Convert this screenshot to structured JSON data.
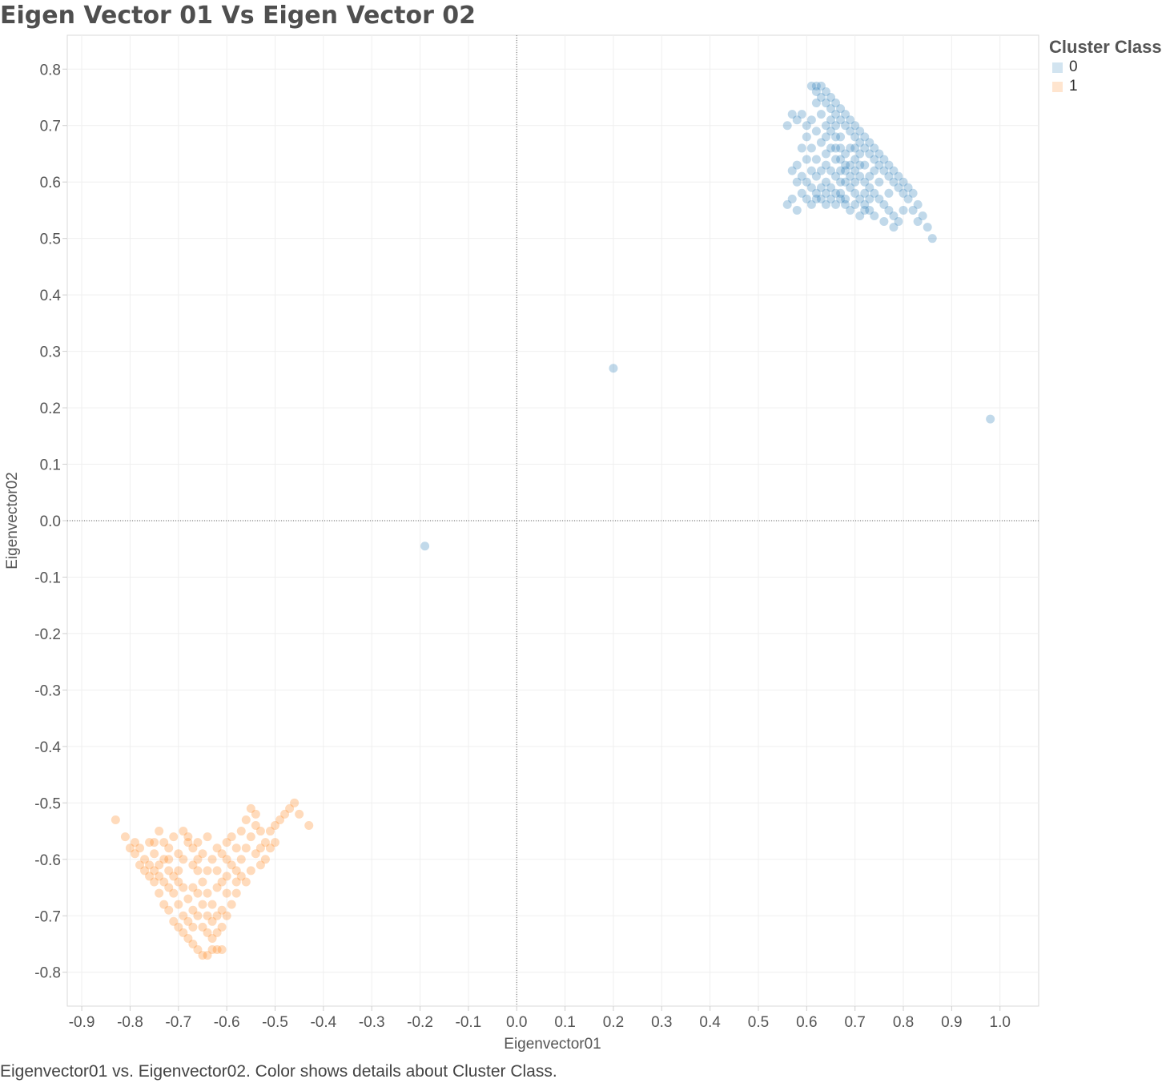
{
  "chart_data": {
    "type": "scatter",
    "title": "Eigen Vector 01 Vs Eigen Vector 02",
    "xlabel": "Eigenvector01",
    "ylabel": "Eigenvector02",
    "caption": "Eigenvector01 vs. Eigenvector02.  Color shows details about Cluster Class.",
    "xlim": [
      -0.93,
      1.08
    ],
    "ylim": [
      -0.86,
      0.86
    ],
    "x_ticks": [
      "-0.9",
      "-0.8",
      "-0.7",
      "-0.6",
      "-0.5",
      "-0.4",
      "-0.3",
      "-0.2",
      "-0.1",
      "0.0",
      "0.1",
      "0.2",
      "0.3",
      "0.4",
      "0.5",
      "0.6",
      "0.7",
      "0.8",
      "0.9",
      "1.0"
    ],
    "y_ticks": [
      "0.8",
      "0.7",
      "0.6",
      "0.5",
      "0.4",
      "0.3",
      "0.2",
      "0.1",
      "0.0",
      "-0.1",
      "-0.2",
      "-0.3",
      "-0.4",
      "-0.5",
      "-0.6",
      "-0.7",
      "-0.8"
    ],
    "grid": true,
    "zero_lines": true,
    "legend": {
      "title": "Cluster Class",
      "placement": "top-right",
      "entries": [
        {
          "label": "0",
          "color": "#1f77b4"
        },
        {
          "label": "1",
          "color": "#ff7f0e"
        }
      ]
    },
    "series": [
      {
        "name": "0",
        "color": "#1f77b4",
        "points": [
          [
            0.63,
            0.77
          ],
          [
            0.64,
            0.76
          ],
          [
            0.65,
            0.75
          ],
          [
            0.66,
            0.74
          ],
          [
            0.67,
            0.73
          ],
          [
            0.68,
            0.72
          ],
          [
            0.69,
            0.71
          ],
          [
            0.7,
            0.7
          ],
          [
            0.71,
            0.69
          ],
          [
            0.72,
            0.68
          ],
          [
            0.73,
            0.67
          ],
          [
            0.74,
            0.66
          ],
          [
            0.75,
            0.65
          ],
          [
            0.76,
            0.64
          ],
          [
            0.77,
            0.63
          ],
          [
            0.78,
            0.62
          ],
          [
            0.79,
            0.61
          ],
          [
            0.8,
            0.6
          ],
          [
            0.81,
            0.59
          ],
          [
            0.82,
            0.58
          ],
          [
            0.83,
            0.56
          ],
          [
            0.84,
            0.54
          ],
          [
            0.85,
            0.52
          ],
          [
            0.86,
            0.5
          ],
          [
            0.62,
            0.76
          ],
          [
            0.63,
            0.75
          ],
          [
            0.64,
            0.74
          ],
          [
            0.65,
            0.73
          ],
          [
            0.66,
            0.72
          ],
          [
            0.67,
            0.71
          ],
          [
            0.68,
            0.7
          ],
          [
            0.69,
            0.69
          ],
          [
            0.7,
            0.68
          ],
          [
            0.71,
            0.67
          ],
          [
            0.72,
            0.66
          ],
          [
            0.73,
            0.65
          ],
          [
            0.74,
            0.64
          ],
          [
            0.75,
            0.63
          ],
          [
            0.76,
            0.62
          ],
          [
            0.77,
            0.61
          ],
          [
            0.78,
            0.6
          ],
          [
            0.79,
            0.59
          ],
          [
            0.8,
            0.58
          ],
          [
            0.81,
            0.57
          ],
          [
            0.82,
            0.55
          ],
          [
            0.83,
            0.53
          ],
          [
            0.62,
            0.74
          ],
          [
            0.63,
            0.72
          ],
          [
            0.64,
            0.7
          ],
          [
            0.65,
            0.69
          ],
          [
            0.66,
            0.68
          ],
          [
            0.67,
            0.66
          ],
          [
            0.68,
            0.65
          ],
          [
            0.69,
            0.63
          ],
          [
            0.7,
            0.62
          ],
          [
            0.71,
            0.61
          ],
          [
            0.72,
            0.6
          ],
          [
            0.73,
            0.59
          ],
          [
            0.74,
            0.58
          ],
          [
            0.75,
            0.57
          ],
          [
            0.76,
            0.56
          ],
          [
            0.77,
            0.55
          ],
          [
            0.78,
            0.54
          ],
          [
            0.79,
            0.53
          ],
          [
            0.8,
            0.55
          ],
          [
            0.61,
            0.71
          ],
          [
            0.62,
            0.69
          ],
          [
            0.63,
            0.67
          ],
          [
            0.64,
            0.65
          ],
          [
            0.65,
            0.66
          ],
          [
            0.66,
            0.64
          ],
          [
            0.67,
            0.62
          ],
          [
            0.68,
            0.6
          ],
          [
            0.69,
            0.59
          ],
          [
            0.7,
            0.58
          ],
          [
            0.71,
            0.57
          ],
          [
            0.72,
            0.56
          ],
          [
            0.73,
            0.55
          ],
          [
            0.74,
            0.54
          ],
          [
            0.76,
            0.53
          ],
          [
            0.78,
            0.52
          ],
          [
            0.6,
            0.68
          ],
          [
            0.61,
            0.66
          ],
          [
            0.62,
            0.64
          ],
          [
            0.63,
            0.62
          ],
          [
            0.64,
            0.6
          ],
          [
            0.65,
            0.59
          ],
          [
            0.66,
            0.58
          ],
          [
            0.67,
            0.57
          ],
          [
            0.68,
            0.56
          ],
          [
            0.69,
            0.55
          ],
          [
            0.7,
            0.56
          ],
          [
            0.71,
            0.54
          ],
          [
            0.72,
            0.55
          ],
          [
            0.59,
            0.66
          ],
          [
            0.6,
            0.64
          ],
          [
            0.61,
            0.62
          ],
          [
            0.62,
            0.61
          ],
          [
            0.63,
            0.59
          ],
          [
            0.64,
            0.58
          ],
          [
            0.65,
            0.57
          ],
          [
            0.66,
            0.56
          ],
          [
            0.67,
            0.58
          ],
          [
            0.68,
            0.57
          ],
          [
            0.58,
            0.63
          ],
          [
            0.59,
            0.61
          ],
          [
            0.6,
            0.6
          ],
          [
            0.61,
            0.59
          ],
          [
            0.62,
            0.58
          ],
          [
            0.63,
            0.57
          ],
          [
            0.64,
            0.56
          ],
          [
            0.57,
            0.62
          ],
          [
            0.58,
            0.6
          ],
          [
            0.59,
            0.58
          ],
          [
            0.6,
            0.57
          ],
          [
            0.61,
            0.56
          ],
          [
            0.62,
            0.57
          ],
          [
            0.56,
            0.56
          ],
          [
            0.57,
            0.57
          ],
          [
            0.58,
            0.55
          ],
          [
            0.56,
            0.7
          ],
          [
            0.57,
            0.72
          ],
          [
            0.58,
            0.71
          ],
          [
            0.59,
            0.72
          ],
          [
            0.6,
            0.7
          ],
          [
            0.61,
            0.77
          ],
          [
            0.62,
            0.77
          ],
          [
            0.66,
            0.7
          ],
          [
            0.67,
            0.68
          ],
          [
            0.7,
            0.64
          ],
          [
            0.71,
            0.63
          ],
          [
            0.73,
            0.61
          ],
          [
            0.75,
            0.6
          ],
          [
            0.74,
            0.62
          ],
          [
            0.77,
            0.58
          ],
          [
            0.64,
            0.68
          ],
          [
            0.65,
            0.71
          ],
          [
            0.66,
            0.66
          ],
          [
            0.67,
            0.64
          ],
          [
            0.68,
            0.63
          ],
          [
            0.69,
            0.61
          ],
          [
            0.7,
            0.6
          ],
          [
            0.72,
            0.58
          ],
          [
            0.73,
            0.57
          ],
          [
            0.64,
            0.63
          ],
          [
            0.65,
            0.62
          ],
          [
            0.66,
            0.61
          ],
          [
            0.67,
            0.6
          ],
          [
            0.68,
            0.62
          ],
          [
            0.69,
            0.66
          ],
          [
            0.7,
            0.66
          ],
          [
            0.71,
            0.65
          ],
          [
            0.72,
            0.63
          ],
          [
            0.2,
            0.27
          ],
          [
            0.98,
            0.18
          ],
          [
            -0.19,
            -0.045
          ]
        ]
      },
      {
        "name": "1",
        "color": "#ff7f0e",
        "points": [
          [
            -0.83,
            -0.53
          ],
          [
            -0.81,
            -0.56
          ],
          [
            -0.8,
            -0.58
          ],
          [
            -0.79,
            -0.59
          ],
          [
            -0.78,
            -0.61
          ],
          [
            -0.77,
            -0.62
          ],
          [
            -0.76,
            -0.63
          ],
          [
            -0.75,
            -0.64
          ],
          [
            -0.74,
            -0.66
          ],
          [
            -0.73,
            -0.68
          ],
          [
            -0.72,
            -0.69
          ],
          [
            -0.71,
            -0.71
          ],
          [
            -0.7,
            -0.72
          ],
          [
            -0.69,
            -0.73
          ],
          [
            -0.68,
            -0.74
          ],
          [
            -0.67,
            -0.75
          ],
          [
            -0.66,
            -0.76
          ],
          [
            -0.65,
            -0.77
          ],
          [
            -0.64,
            -0.77
          ],
          [
            -0.63,
            -0.76
          ],
          [
            -0.62,
            -0.76
          ],
          [
            -0.61,
            -0.76
          ],
          [
            -0.78,
            -0.58
          ],
          [
            -0.77,
            -0.6
          ],
          [
            -0.76,
            -0.61
          ],
          [
            -0.75,
            -0.62
          ],
          [
            -0.74,
            -0.63
          ],
          [
            -0.73,
            -0.64
          ],
          [
            -0.72,
            -0.65
          ],
          [
            -0.71,
            -0.66
          ],
          [
            -0.7,
            -0.68
          ],
          [
            -0.69,
            -0.7
          ],
          [
            -0.68,
            -0.71
          ],
          [
            -0.67,
            -0.72
          ],
          [
            -0.76,
            -0.57
          ],
          [
            -0.75,
            -0.59
          ],
          [
            -0.74,
            -0.61
          ],
          [
            -0.73,
            -0.6
          ],
          [
            -0.72,
            -0.62
          ],
          [
            -0.71,
            -0.63
          ],
          [
            -0.7,
            -0.64
          ],
          [
            -0.69,
            -0.65
          ],
          [
            -0.68,
            -0.67
          ],
          [
            -0.67,
            -0.69
          ],
          [
            -0.66,
            -0.7
          ],
          [
            -0.65,
            -0.72
          ],
          [
            -0.64,
            -0.73
          ],
          [
            -0.63,
            -0.74
          ],
          [
            -0.74,
            -0.55
          ],
          [
            -0.73,
            -0.57
          ],
          [
            -0.72,
            -0.58
          ],
          [
            -0.71,
            -0.56
          ],
          [
            -0.7,
            -0.59
          ],
          [
            -0.69,
            -0.6
          ],
          [
            -0.68,
            -0.57
          ],
          [
            -0.67,
            -0.61
          ],
          [
            -0.66,
            -0.62
          ],
          [
            -0.65,
            -0.64
          ],
          [
            -0.64,
            -0.66
          ],
          [
            -0.63,
            -0.68
          ],
          [
            -0.62,
            -0.7
          ],
          [
            -0.61,
            -0.72
          ],
          [
            -0.69,
            -0.55
          ],
          [
            -0.68,
            -0.56
          ],
          [
            -0.67,
            -0.58
          ],
          [
            -0.66,
            -0.57
          ],
          [
            -0.65,
            -0.59
          ],
          [
            -0.64,
            -0.56
          ],
          [
            -0.63,
            -0.6
          ],
          [
            -0.62,
            -0.62
          ],
          [
            -0.61,
            -0.64
          ],
          [
            -0.6,
            -0.66
          ],
          [
            -0.61,
            -0.69
          ],
          [
            -0.62,
            -0.73
          ],
          [
            -0.62,
            -0.58
          ],
          [
            -0.61,
            -0.59
          ],
          [
            -0.6,
            -0.6
          ],
          [
            -0.59,
            -0.61
          ],
          [
            -0.58,
            -0.62
          ],
          [
            -0.57,
            -0.6
          ],
          [
            -0.56,
            -0.58
          ],
          [
            -0.55,
            -0.56
          ],
          [
            -0.54,
            -0.54
          ],
          [
            -0.53,
            -0.55
          ],
          [
            -0.52,
            -0.57
          ],
          [
            -0.6,
            -0.57
          ],
          [
            -0.59,
            -0.56
          ],
          [
            -0.58,
            -0.58
          ],
          [
            -0.57,
            -0.55
          ],
          [
            -0.56,
            -0.53
          ],
          [
            -0.55,
            -0.51
          ],
          [
            -0.54,
            -0.52
          ],
          [
            -0.53,
            -0.58
          ],
          [
            -0.52,
            -0.6
          ],
          [
            -0.55,
            -0.62
          ],
          [
            -0.56,
            -0.64
          ],
          [
            -0.51,
            -0.55
          ],
          [
            -0.5,
            -0.54
          ],
          [
            -0.49,
            -0.53
          ],
          [
            -0.48,
            -0.52
          ],
          [
            -0.47,
            -0.51
          ],
          [
            -0.46,
            -0.5
          ],
          [
            -0.45,
            -0.52
          ],
          [
            -0.43,
            -0.54
          ],
          [
            -0.5,
            -0.57
          ],
          [
            -0.51,
            -0.58
          ],
          [
            -0.58,
            -0.66
          ],
          [
            -0.59,
            -0.68
          ],
          [
            -0.6,
            -0.7
          ],
          [
            -0.63,
            -0.71
          ],
          [
            -0.66,
            -0.66
          ],
          [
            -0.67,
            -0.65
          ],
          [
            -0.7,
            -0.62
          ],
          [
            -0.72,
            -0.6
          ],
          [
            -0.75,
            -0.57
          ],
          [
            -0.79,
            -0.57
          ],
          [
            -0.65,
            -0.68
          ],
          [
            -0.64,
            -0.7
          ],
          [
            -0.62,
            -0.65
          ],
          [
            -0.6,
            -0.63
          ],
          [
            -0.58,
            -0.64
          ],
          [
            -0.57,
            -0.63
          ],
          [
            -0.54,
            -0.59
          ],
          [
            -0.53,
            -0.61
          ],
          [
            -0.64,
            -0.62
          ],
          [
            -0.66,
            -0.6
          ]
        ]
      }
    ]
  }
}
